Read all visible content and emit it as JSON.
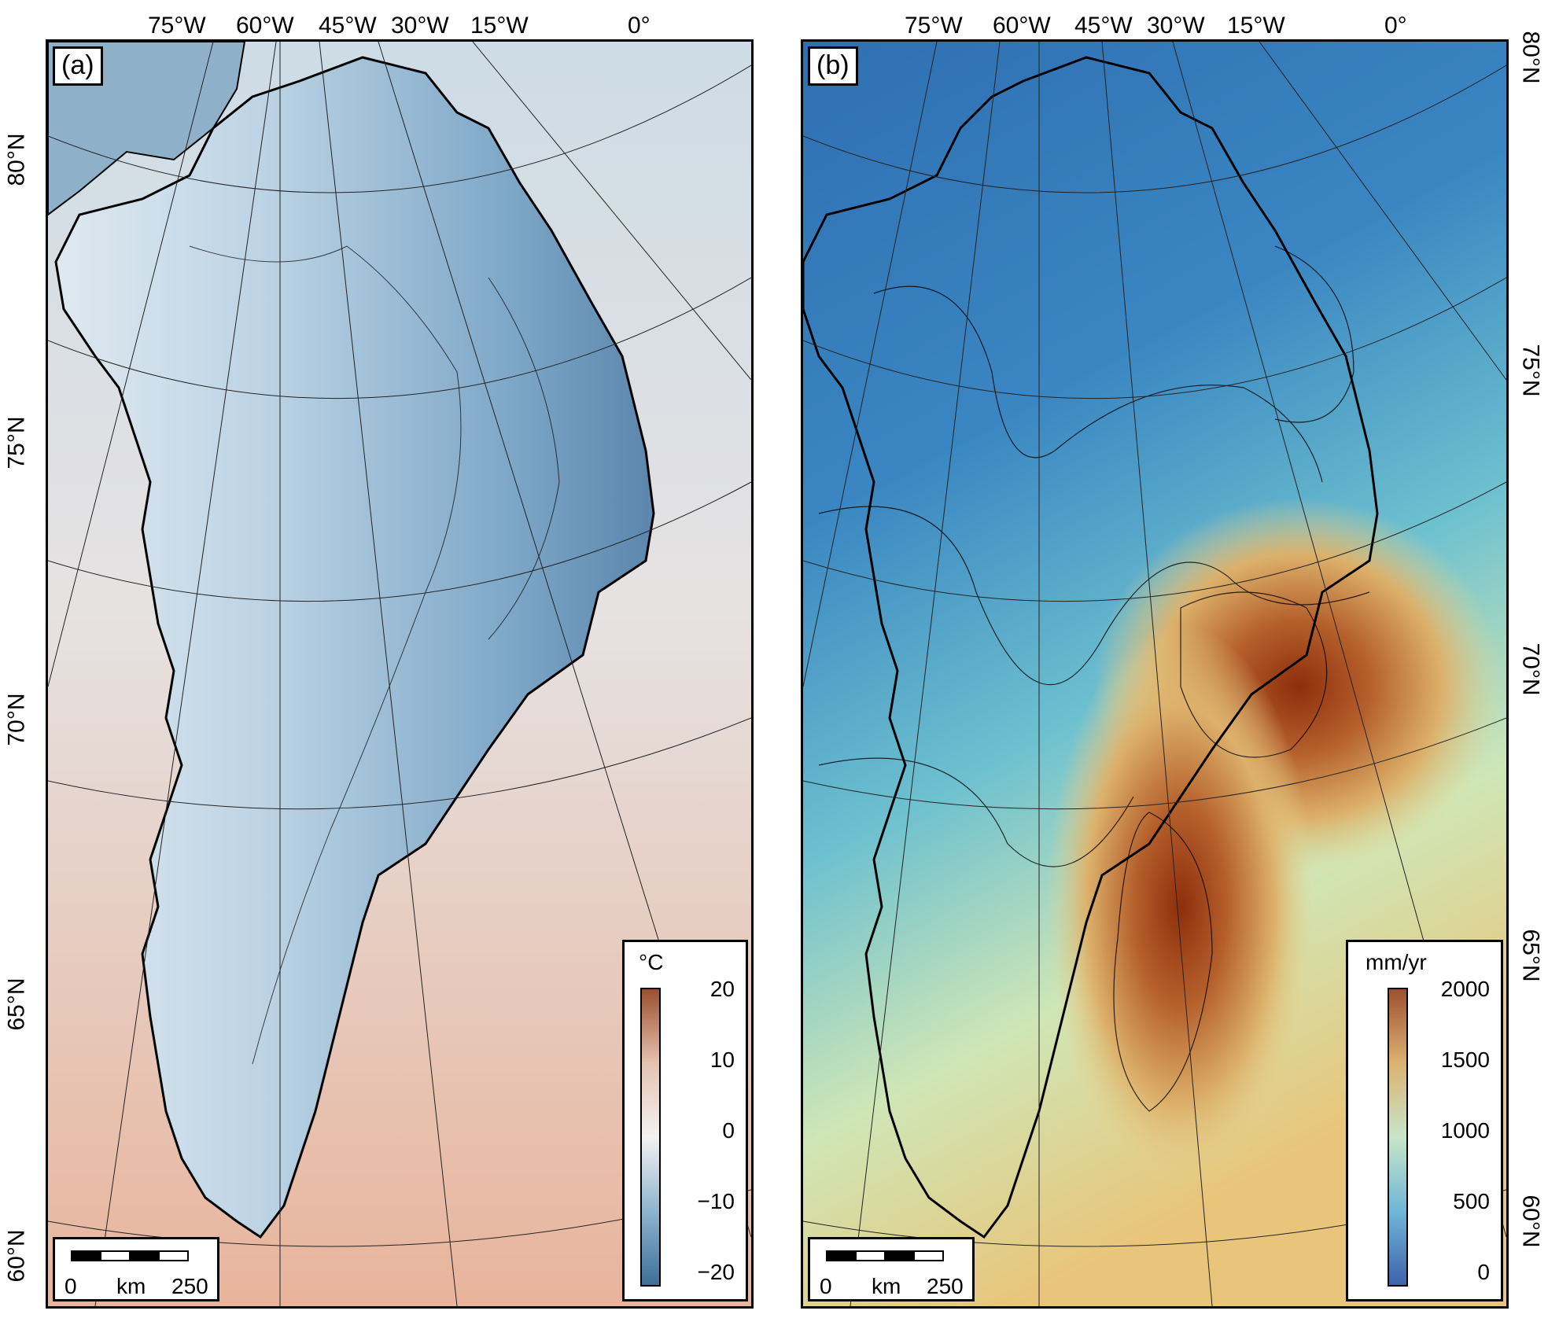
{
  "panel_a": {
    "tag": "(a)",
    "lon_labels": [
      "75°W",
      "60°W",
      "45°W",
      "30°W",
      "15°W",
      "0°"
    ],
    "lat_labels": [
      "80°N",
      "75°N",
      "70°N",
      "65°N",
      "60°N"
    ],
    "legend": {
      "unit": "°C",
      "ticks": [
        "20",
        "10",
        "0",
        "−10",
        "−20"
      ],
      "colors": [
        "#9c4f2f",
        "#e6c2b0",
        "#f2f2f2",
        "#8fb4cf",
        "#3d6f97"
      ]
    },
    "scalebar": {
      "start": "0",
      "unit": "km",
      "end": "250"
    },
    "colors": {
      "ocean_top": "#cfdde6",
      "ocean_bottom": "#e8b8a0",
      "land": "#a9c7dc",
      "land_dark": "#6a9bbf"
    }
  },
  "panel_b": {
    "tag": "(b)",
    "lon_labels": [
      "75°W",
      "60°W",
      "45°W",
      "30°W",
      "15°W",
      "0°"
    ],
    "lat_labels": [
      "80°N",
      "75°N",
      "70°N",
      "65°N",
      "60°N"
    ],
    "legend": {
      "unit": "mm/yr",
      "ticks": [
        "2000",
        "1500",
        "1000",
        "500",
        "0"
      ],
      "colors": [
        "#9e5030",
        "#dbb272",
        "#c8e6c8",
        "#6fb6d8",
        "#3f63aa"
      ]
    },
    "scalebar": {
      "start": "0",
      "unit": "km",
      "end": "250"
    },
    "colors": {
      "low": "#3f7fbf",
      "mid": "#63bccf",
      "high": "#efe3a0",
      "peak": "#9a3a14"
    }
  }
}
